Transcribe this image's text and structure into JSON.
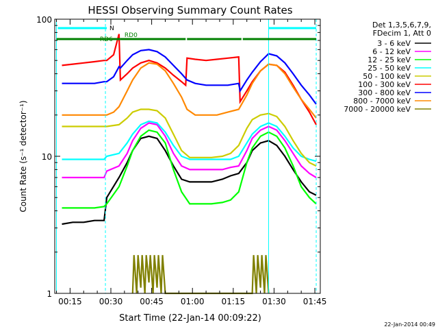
{
  "chart_data": {
    "type": "line",
    "title": "HESSI Observing Summary Count Rates",
    "xlabel": "Start Time (22-Jan-14 00:09:22)",
    "ylabel": "Count Rate (s⁻¹ detector⁻¹)",
    "yscale": "log",
    "ylim": [
      1,
      100
    ],
    "xlim_minutes": [
      9.37,
      107.0
    ],
    "x_ticks": [
      "00:15",
      "00:30",
      "00:45",
      "01:00",
      "01:15",
      "01:30",
      "01:45"
    ],
    "y_ticks": [
      "1",
      "10",
      "100"
    ],
    "footer_date": "22-Jan-2014 00:49",
    "legend_title_1": "Det 1,3,5,6,7,9,",
    "legend_title_2": "FDecim 1, Att 0",
    "flags": {
      "night": {
        "label": "N",
        "color": "#00ffff",
        "segments": [
          [
            10.5,
            28.5
          ],
          [
            88.0,
            105.5
          ]
        ]
      },
      "saa": {
        "label": "RD0",
        "color": "#008000",
        "segments": [
          [
            10.0,
            33.5
          ],
          [
            33.5,
            57.5
          ],
          [
            58.0,
            78.0
          ],
          [
            78.5,
            105.5
          ]
        ]
      },
      "rd6_label": "RD6"
    },
    "day_lines": [
      28.0,
      88.0
    ],
    "night_lines": [
      28.0,
      105.5
    ],
    "series": [
      {
        "name": "3 - 6 keV",
        "color": "#000000",
        "points": [
          [
            12,
            3.2
          ],
          [
            16,
            3.3
          ],
          [
            20,
            3.3
          ],
          [
            24,
            3.4
          ],
          [
            27.5,
            3.4
          ],
          [
            28.5,
            5.0
          ],
          [
            33,
            7.0
          ],
          [
            36,
            9.0
          ],
          [
            38,
            11.0
          ],
          [
            41,
            13.5
          ],
          [
            44,
            14.0
          ],
          [
            47,
            13.5
          ],
          [
            50,
            11.0
          ],
          [
            53,
            8.5
          ],
          [
            56,
            6.8
          ],
          [
            59,
            6.5
          ],
          [
            63,
            6.5
          ],
          [
            67,
            6.5
          ],
          [
            71,
            6.8
          ],
          [
            74,
            7.2
          ],
          [
            77,
            7.5
          ],
          [
            80,
            9.0
          ],
          [
            82,
            11.0
          ],
          [
            85,
            12.5
          ],
          [
            88,
            13.0
          ],
          [
            91,
            12.0
          ],
          [
            94,
            10.0
          ],
          [
            97,
            8.0
          ],
          [
            100,
            6.5
          ],
          [
            103,
            5.5
          ],
          [
            105.5,
            5.2
          ]
        ]
      },
      {
        "name": "6 - 12 keV",
        "color": "#ff00ff",
        "points": [
          [
            12,
            7.0
          ],
          [
            16,
            7.0
          ],
          [
            20,
            7.0
          ],
          [
            24,
            7.0
          ],
          [
            27.5,
            7.0
          ],
          [
            28.5,
            7.8
          ],
          [
            33,
            8.5
          ],
          [
            36,
            10.5
          ],
          [
            38,
            13.0
          ],
          [
            41,
            16.0
          ],
          [
            44,
            17.5
          ],
          [
            47,
            17.0
          ],
          [
            50,
            14.0
          ],
          [
            53,
            10.5
          ],
          [
            56,
            8.5
          ],
          [
            59,
            8.0
          ],
          [
            63,
            8.0
          ],
          [
            67,
            8.0
          ],
          [
            71,
            8.0
          ],
          [
            74,
            8.3
          ],
          [
            77,
            8.5
          ],
          [
            80,
            11.0
          ],
          [
            82,
            13.5
          ],
          [
            85,
            15.5
          ],
          [
            88,
            16.5
          ],
          [
            91,
            15.5
          ],
          [
            94,
            13.0
          ],
          [
            97,
            10.5
          ],
          [
            100,
            8.5
          ],
          [
            103,
            7.5
          ],
          [
            105.5,
            7.0
          ]
        ]
      },
      {
        "name": "12 - 25 keV",
        "color": "#00ff00",
        "points": [
          [
            12,
            4.2
          ],
          [
            16,
            4.2
          ],
          [
            20,
            4.2
          ],
          [
            24,
            4.2
          ],
          [
            27.5,
            4.3
          ],
          [
            28.5,
            4.5
          ],
          [
            33,
            6.0
          ],
          [
            36,
            8.5
          ],
          [
            38,
            11.0
          ],
          [
            41,
            14.0
          ],
          [
            44,
            15.5
          ],
          [
            47,
            15.0
          ],
          [
            50,
            12.5
          ],
          [
            53,
            8.0
          ],
          [
            56,
            5.5
          ],
          [
            59,
            4.5
          ],
          [
            63,
            4.5
          ],
          [
            67,
            4.5
          ],
          [
            71,
            4.6
          ],
          [
            74,
            4.8
          ],
          [
            77,
            5.5
          ],
          [
            80,
            9.0
          ],
          [
            82,
            11.5
          ],
          [
            85,
            14.0
          ],
          [
            88,
            15.0
          ],
          [
            91,
            14.0
          ],
          [
            94,
            11.5
          ],
          [
            97,
            8.5
          ],
          [
            100,
            6.0
          ],
          [
            103,
            5.0
          ],
          [
            105.5,
            4.5
          ]
        ]
      },
      {
        "name": "25 - 50 keV",
        "color": "#00ffff",
        "points": [
          [
            12,
            9.5
          ],
          [
            16,
            9.5
          ],
          [
            20,
            9.5
          ],
          [
            24,
            9.5
          ],
          [
            27.5,
            9.5
          ],
          [
            28.5,
            10.0
          ],
          [
            33,
            10.5
          ],
          [
            36,
            12.5
          ],
          [
            38,
            14.5
          ],
          [
            41,
            17.0
          ],
          [
            44,
            18.0
          ],
          [
            47,
            17.5
          ],
          [
            50,
            15.0
          ],
          [
            53,
            12.0
          ],
          [
            56,
            10.0
          ],
          [
            59,
            9.5
          ],
          [
            63,
            9.5
          ],
          [
            67,
            9.5
          ],
          [
            71,
            9.5
          ],
          [
            74,
            9.5
          ],
          [
            77,
            10.0
          ],
          [
            80,
            12.5
          ],
          [
            82,
            14.5
          ],
          [
            85,
            16.5
          ],
          [
            88,
            17.5
          ],
          [
            91,
            16.5
          ],
          [
            94,
            14.0
          ],
          [
            97,
            11.5
          ],
          [
            100,
            10.0
          ],
          [
            103,
            9.5
          ],
          [
            105.5,
            9.2
          ]
        ]
      },
      {
        "name": "50 - 100 keV",
        "color": "#cccc00",
        "points": [
          [
            12,
            16.5
          ],
          [
            16,
            16.5
          ],
          [
            20,
            16.5
          ],
          [
            24,
            16.5
          ],
          [
            27.5,
            16.5
          ],
          [
            28.5,
            16.5
          ],
          [
            33,
            17.0
          ],
          [
            36,
            19.0
          ],
          [
            38,
            21.0
          ],
          [
            41,
            22.0
          ],
          [
            44,
            22.0
          ],
          [
            47,
            21.5
          ],
          [
            50,
            19.0
          ],
          [
            53,
            14.5
          ],
          [
            56,
            11.0
          ],
          [
            59,
            9.8
          ],
          [
            63,
            9.8
          ],
          [
            67,
            9.8
          ],
          [
            71,
            10.0
          ],
          [
            74,
            10.5
          ],
          [
            77,
            12.0
          ],
          [
            80,
            16.0
          ],
          [
            82,
            18.5
          ],
          [
            85,
            20.0
          ],
          [
            88,
            20.5
          ],
          [
            91,
            19.5
          ],
          [
            94,
            16.5
          ],
          [
            97,
            13.0
          ],
          [
            100,
            10.5
          ],
          [
            103,
            9.0
          ],
          [
            105.5,
            8.5
          ]
        ]
      },
      {
        "name": "100 - 300 keV",
        "color": "#ff0000",
        "points": [
          [
            12,
            46
          ],
          [
            16,
            47
          ],
          [
            20,
            48
          ],
          [
            24,
            49
          ],
          [
            27.5,
            50
          ],
          [
            28.5,
            50
          ],
          [
            31,
            55
          ],
          [
            33,
            78
          ],
          [
            33.5,
            36
          ],
          [
            36,
            40
          ],
          [
            38,
            44
          ],
          [
            41,
            48
          ],
          [
            44,
            50
          ],
          [
            47,
            48
          ],
          [
            50,
            44
          ],
          [
            53,
            39
          ],
          [
            56,
            35
          ],
          [
            57.5,
            33
          ],
          [
            58,
            52
          ],
          [
            61,
            51
          ],
          [
            65,
            50
          ],
          [
            69,
            51
          ],
          [
            73,
            52
          ],
          [
            77,
            53
          ],
          [
            77.5,
            25
          ],
          [
            80,
            30
          ],
          [
            82,
            35
          ],
          [
            85,
            42
          ],
          [
            88,
            47
          ],
          [
            91,
            46
          ],
          [
            94,
            41
          ],
          [
            97,
            33
          ],
          [
            100,
            26
          ],
          [
            103,
            21
          ],
          [
            105.5,
            17
          ]
        ]
      },
      {
        "name": "300 - 800 keV",
        "color": "#0000ff",
        "points": [
          [
            12,
            34
          ],
          [
            16,
            34
          ],
          [
            20,
            34
          ],
          [
            24,
            34
          ],
          [
            27.5,
            35
          ],
          [
            28.5,
            35
          ],
          [
            31,
            38
          ],
          [
            33,
            45
          ],
          [
            33.5,
            44
          ],
          [
            36,
            50
          ],
          [
            38,
            55
          ],
          [
            41,
            59
          ],
          [
            44,
            60
          ],
          [
            47,
            58
          ],
          [
            50,
            53
          ],
          [
            53,
            46
          ],
          [
            56,
            40
          ],
          [
            57.5,
            37
          ],
          [
            58,
            36
          ],
          [
            61,
            34
          ],
          [
            65,
            33
          ],
          [
            69,
            33
          ],
          [
            73,
            33
          ],
          [
            77,
            34
          ],
          [
            77.5,
            30
          ],
          [
            80,
            36
          ],
          [
            82,
            41
          ],
          [
            85,
            49
          ],
          [
            88,
            56
          ],
          [
            91,
            54
          ],
          [
            94,
            48
          ],
          [
            97,
            40
          ],
          [
            100,
            33
          ],
          [
            103,
            28
          ],
          [
            105.5,
            24
          ]
        ]
      },
      {
        "name": "800 - 7000 keV",
        "color": "#ff8800",
        "points": [
          [
            12,
            20
          ],
          [
            16,
            20
          ],
          [
            20,
            20
          ],
          [
            24,
            20
          ],
          [
            27.5,
            20
          ],
          [
            28.5,
            20
          ],
          [
            31,
            21
          ],
          [
            33,
            23
          ],
          [
            36,
            30
          ],
          [
            38,
            36
          ],
          [
            41,
            44
          ],
          [
            44,
            48
          ],
          [
            47,
            47
          ],
          [
            50,
            42
          ],
          [
            53,
            34
          ],
          [
            56,
            27
          ],
          [
            58,
            22
          ],
          [
            61,
            20
          ],
          [
            65,
            20
          ],
          [
            69,
            20
          ],
          [
            73,
            21
          ],
          [
            77,
            22
          ],
          [
            80,
            28
          ],
          [
            82,
            34
          ],
          [
            85,
            42
          ],
          [
            88,
            47
          ],
          [
            91,
            46
          ],
          [
            94,
            40
          ],
          [
            97,
            32
          ],
          [
            100,
            26
          ],
          [
            103,
            22
          ],
          [
            105.5,
            19
          ]
        ]
      },
      {
        "name": "7000 - 20000 keV",
        "color": "#808000",
        "points": [
          [
            38,
            1.0
          ],
          [
            38.5,
            1.9
          ],
          [
            39.5,
            1.0
          ],
          [
            40,
            1.9
          ],
          [
            41,
            1.1
          ],
          [
            41.5,
            1.9
          ],
          [
            42.5,
            1.0
          ],
          [
            43,
            1.9
          ],
          [
            44,
            1.2
          ],
          [
            44.5,
            1.9
          ],
          [
            45.5,
            1.0
          ],
          [
            46,
            1.9
          ],
          [
            47,
            1.1
          ],
          [
            47.5,
            1.9
          ],
          [
            48.5,
            1.0
          ],
          [
            49,
            1.9
          ],
          [
            50,
            1.0
          ],
          [
            82,
            1.0
          ],
          [
            82.5,
            1.9
          ],
          [
            83.5,
            1.0
          ],
          [
            84,
            1.9
          ],
          [
            85,
            1.1
          ],
          [
            85.5,
            1.9
          ],
          [
            86.5,
            1.0
          ],
          [
            87,
            1.9
          ],
          [
            88,
            1.0
          ]
        ]
      }
    ]
  }
}
